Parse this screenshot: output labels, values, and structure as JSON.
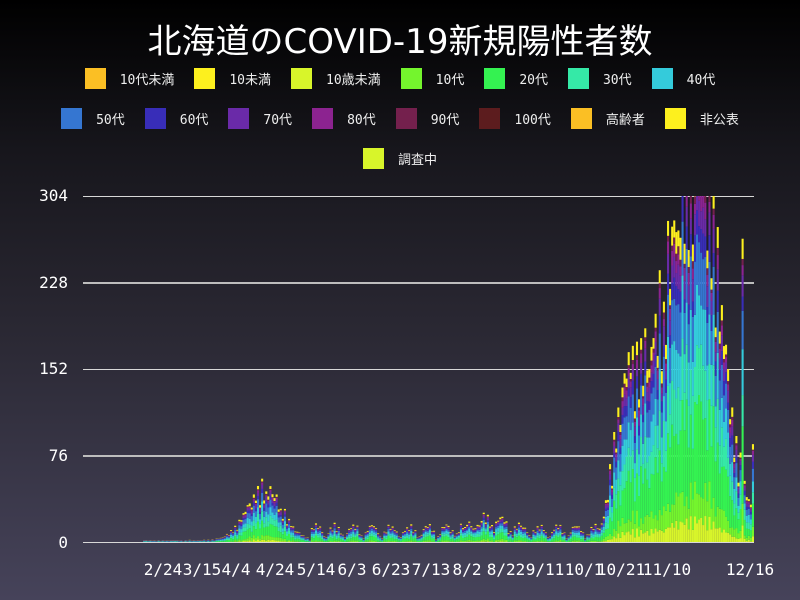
{
  "title": "北海道のCOVID-19新規陽性者数",
  "legend": [
    {
      "label": "10代未満",
      "color": "#fbbf24"
    },
    {
      "label": "10未満",
      "color": "#fdf01e"
    },
    {
      "label": "10歳未満",
      "color": "#d8f52a"
    },
    {
      "label": "10代",
      "color": "#74f52d"
    },
    {
      "label": "20代",
      "color": "#34f251"
    },
    {
      "label": "30代",
      "color": "#35e9a7"
    },
    {
      "label": "40代",
      "color": "#34cbdb"
    },
    {
      "label": "50代",
      "color": "#3576d1"
    },
    {
      "label": "60代",
      "color": "#382db8"
    },
    {
      "label": "70代",
      "color": "#6a2aa8"
    },
    {
      "label": "80代",
      "color": "#8c2390"
    },
    {
      "label": "90代",
      "color": "#74204d"
    },
    {
      "label": "100代",
      "color": "#5c1c1e"
    },
    {
      "label": "高齢者",
      "color": "#fbbf24"
    },
    {
      "label": "非公表",
      "color": "#fdf01e"
    },
    {
      "label": "調査中",
      "color": "#d8f52a"
    }
  ],
  "chart_data": {
    "type": "bar",
    "stacked": true,
    "title": "北海道のCOVID-19新規陽性者数",
    "xlabel": "",
    "ylabel": "",
    "ylim": [
      0,
      304
    ],
    "yticks": [
      0,
      76,
      152,
      228,
      304
    ],
    "xtick_labels": [
      "2/24",
      "3/15",
      "4/4",
      "4/24",
      "5/14",
      "6/3",
      "6/23",
      "7/13",
      "8/2",
      "8/22",
      "9/11",
      "10/1",
      "10/21",
      "11/10",
      "12/16"
    ],
    "grid": true,
    "legend_position": "top",
    "series_names": [
      "10代未満",
      "10未満",
      "10歳未満",
      "10代",
      "20代",
      "30代",
      "40代",
      "50代",
      "60代",
      "70代",
      "80代",
      "90代",
      "100代",
      "高齢者",
      "非公表",
      "調査中"
    ],
    "daily_totals_approx": {
      "x_range": [
        "1/28",
        "12/16"
      ],
      "peaks": [
        {
          "period": "4/24 approx",
          "value": 40
        },
        {
          "period": "8/2-8/22",
          "value": 20
        },
        {
          "period": "11/10-11/20",
          "value": 304
        },
        {
          "period": "12/10",
          "value": 238
        },
        {
          "period": "12/16",
          "value": 80
        }
      ]
    }
  },
  "yaxis": {
    "ticks": [
      "304",
      "228",
      "152",
      "76",
      "0"
    ]
  },
  "xaxis": {
    "ticks": [
      "2/24",
      "3/15",
      "4/4",
      "4/24",
      "5/14",
      "6/3",
      "6/23",
      "7/13",
      "8/2",
      "8/22",
      "9/11",
      "10/1",
      "10/21",
      "11/10",
      "12/16"
    ]
  }
}
